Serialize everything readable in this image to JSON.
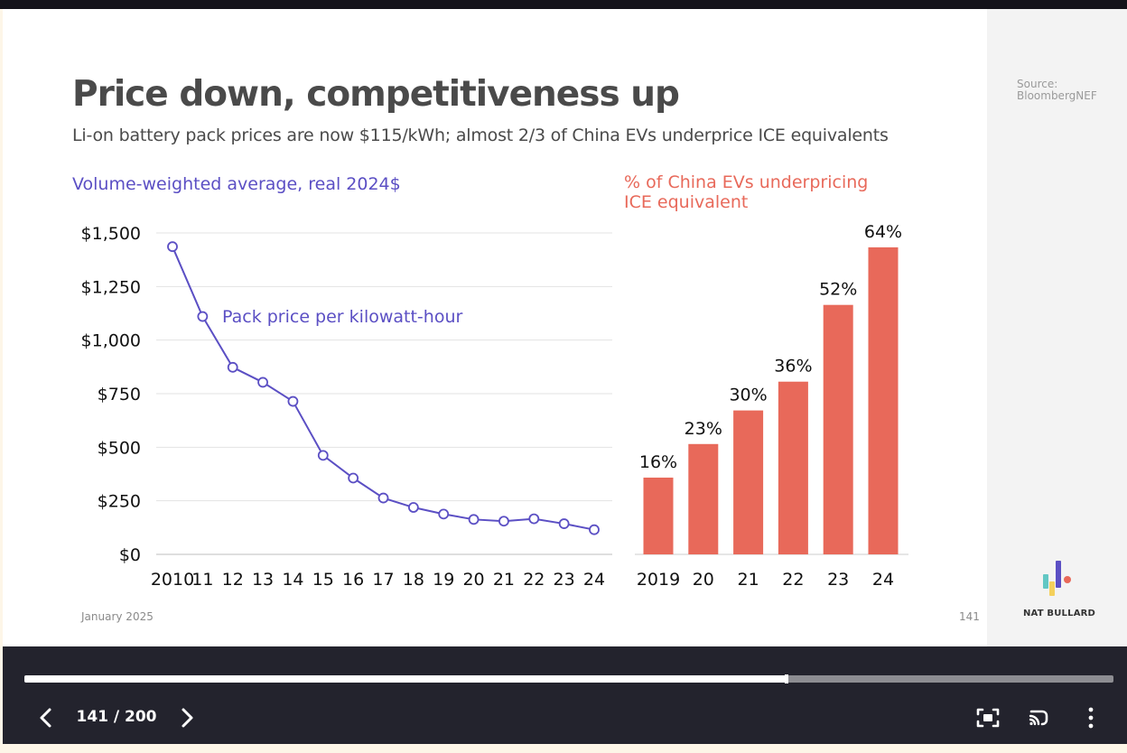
{
  "slide": {
    "title": "Price down, competitiveness up",
    "subtitle": "Li-on battery pack prices are now $115/kWh; almost 2/3 of China EVs underprice ICE equivalents",
    "source_label": "Source:",
    "source_value": "BloombergNEF",
    "date": "January 2025",
    "page_number": "141",
    "brand": "NAT BULLARD",
    "colors": {
      "line": "#5b4fc4",
      "bar": "#e8695a",
      "title": "#4a4a4a"
    }
  },
  "chart_data": [
    {
      "type": "line",
      "title": "Volume-weighted average, real 2024$",
      "annotation": "Pack price per kilowatt-hour",
      "categories": [
        "2010",
        "11",
        "12",
        "13",
        "14",
        "15",
        "16",
        "17",
        "18",
        "19",
        "20",
        "21",
        "22",
        "23",
        "24"
      ],
      "values": [
        1436,
        1110,
        873,
        803,
        714,
        462,
        356,
        263,
        219,
        188,
        163,
        155,
        166,
        143,
        115
      ],
      "y_ticks": [
        "$1,500",
        "$1,250",
        "$1,000",
        "$750",
        "$500",
        "$250",
        "$0"
      ],
      "ylim": [
        0,
        1500
      ],
      "grid": true,
      "color": "#5b4fc4"
    },
    {
      "type": "bar",
      "title_lines": [
        "% of China EVs underpricing",
        "ICE equivalent"
      ],
      "categories": [
        "2019",
        "20",
        "21",
        "22",
        "23",
        "24"
      ],
      "values": [
        16,
        23,
        30,
        36,
        52,
        64
      ],
      "labels": [
        "16%",
        "23%",
        "30%",
        "36%",
        "52%",
        "64%"
      ],
      "ylim": [
        0,
        67
      ],
      "color": "#e8695a"
    }
  ],
  "player": {
    "page_indicator": "141 / 200",
    "progress": 0.7,
    "icons": {
      "prev": "chevron-left-icon",
      "next": "chevron-right-icon",
      "fullscreen": "fullscreen-icon",
      "cast": "cast-icon",
      "more": "more-vertical-icon"
    }
  }
}
